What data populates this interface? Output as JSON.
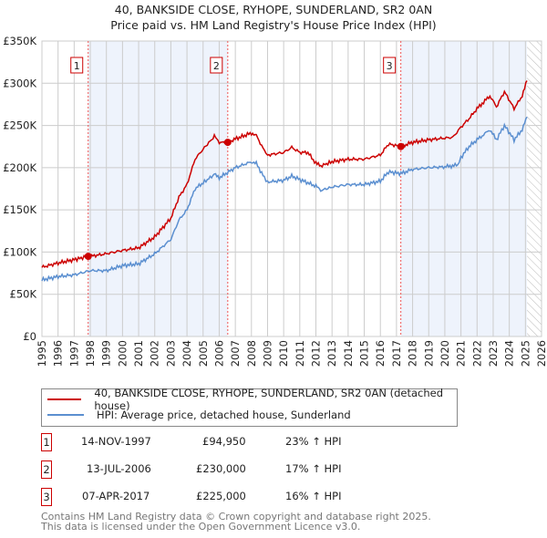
{
  "title_line1": "40, BANKSIDE CLOSE, RYHOPE, SUNDERLAND, SR2 0AN",
  "title_line2": "Price paid vs. HM Land Registry's House Price Index (HPI)",
  "chart_data": {
    "type": "line",
    "title": "40, BANKSIDE CLOSE, RYHOPE, SUNDERLAND, SR2 0AN - Price paid vs. HM Land Registry's House Price Index (HPI)",
    "xlim": [
      1995,
      2026
    ],
    "ylim": [
      0,
      350000
    ],
    "y_ticks": [
      0,
      50000,
      100000,
      150000,
      200000,
      250000,
      300000,
      350000
    ],
    "y_tick_labels": [
      "£0",
      "£50K",
      "£100K",
      "£150K",
      "£200K",
      "£250K",
      "£300K",
      "£350K"
    ],
    "x_ticks": [
      1995,
      1996,
      1997,
      1998,
      1999,
      2000,
      2001,
      2002,
      2003,
      2004,
      2005,
      2006,
      2007,
      2008,
      2009,
      2010,
      2011,
      2012,
      2013,
      2014,
      2015,
      2016,
      2017,
      2018,
      2019,
      2020,
      2021,
      2022,
      2023,
      2024,
      2025,
      2026
    ],
    "grid": true,
    "legend_position": "below",
    "shaded_ranges": [
      [
        1997.87,
        2006.53
      ],
      [
        2017.27,
        2025.1
      ]
    ],
    "hatched_from": 2025.1,
    "series": [
      {
        "name": "40, BANKSIDE CLOSE, RYHOPE, SUNDERLAND, SR2 0AN (detached house)",
        "color": "#cc0000",
        "x": [
          1995,
          1996,
          1997,
          1997.87,
          1998,
          1999,
          2000,
          2001,
          2002,
          2003,
          2003.5,
          2004,
          2004.5,
          2005,
          2005.7,
          2006,
          2006.53,
          2007,
          2008,
          2008.3,
          2008.8,
          2009,
          2010,
          2010.5,
          2011,
          2011.5,
          2012,
          2012.3,
          2013,
          2014,
          2015,
          2016,
          2016.5,
          2017.27,
          2018,
          2019,
          2020,
          2020.5,
          2021,
          2021.5,
          2022,
          2022.8,
          2023.2,
          2023.7,
          2024.3,
          2024.8,
          2025.1
        ],
        "y": [
          82000,
          87000,
          91000,
          94950,
          95000,
          98000,
          102000,
          105000,
          118000,
          140000,
          165000,
          180000,
          210000,
          222000,
          237000,
          230000,
          230000,
          234000,
          241000,
          238000,
          220000,
          215000,
          218000,
          224000,
          218000,
          218000,
          205000,
          202000,
          207000,
          210000,
          210000,
          215000,
          228000,
          225000,
          230000,
          233000,
          235000,
          236000,
          248000,
          258000,
          270000,
          285000,
          272000,
          290000,
          270000,
          285000,
          303000
        ]
      },
      {
        "name": "HPI: Average price, detached house, Sunderland",
        "color": "#5b8fd0",
        "x": [
          1995,
          1996,
          1997,
          1998,
          1999,
          2000,
          2001,
          2002,
          2003,
          2003.5,
          2004,
          2004.5,
          2005,
          2005.7,
          2006,
          2007,
          2008,
          2008.3,
          2008.8,
          2009,
          2010,
          2010.5,
          2011,
          2012,
          2012.3,
          2013,
          2014,
          2015,
          2016,
          2016.5,
          2017.27,
          2018,
          2019,
          2020,
          2020.8,
          2021,
          2021.5,
          2022,
          2022.8,
          2023.2,
          2023.7,
          2024.3,
          2024.8,
          2025.1
        ],
        "y": [
          67000,
          71000,
          73000,
          78000,
          78000,
          84000,
          86000,
          98000,
          115000,
          138000,
          150000,
          175000,
          182000,
          192000,
          188000,
          200000,
          207000,
          205000,
          188000,
          183000,
          185000,
          190000,
          186000,
          178000,
          173000,
          177000,
          180000,
          180000,
          184000,
          195000,
          193000,
          198000,
          200000,
          201000,
          203000,
          212000,
          225000,
          233000,
          245000,
          233000,
          250000,
          233000,
          245000,
          260000
        ]
      }
    ],
    "sales": [
      {
        "label": "1",
        "x": 1997.87,
        "y": 94950
      },
      {
        "label": "2",
        "x": 2006.53,
        "y": 230000
      },
      {
        "label": "3",
        "x": 2017.27,
        "y": 225000
      }
    ]
  },
  "legend": [
    {
      "label": "40, BANKSIDE CLOSE, RYHOPE, SUNDERLAND, SR2 0AN (detached house)",
      "color": "#cc0000"
    },
    {
      "label": "HPI: Average price, detached house, Sunderland",
      "color": "#5b8fd0"
    }
  ],
  "transactions": [
    {
      "num": "1",
      "date": "14-NOV-1997",
      "price": "£94,950",
      "hpi": "23% ↑ HPI"
    },
    {
      "num": "2",
      "date": "13-JUL-2006",
      "price": "£230,000",
      "hpi": "17% ↑ HPI"
    },
    {
      "num": "3",
      "date": "07-APR-2017",
      "price": "£225,000",
      "hpi": "16% ↑ HPI"
    }
  ],
  "footer_line1": "Contains HM Land Registry data © Crown copyright and database right 2025.",
  "footer_line2": "This data is licensed under the Open Government Licence v3.0."
}
